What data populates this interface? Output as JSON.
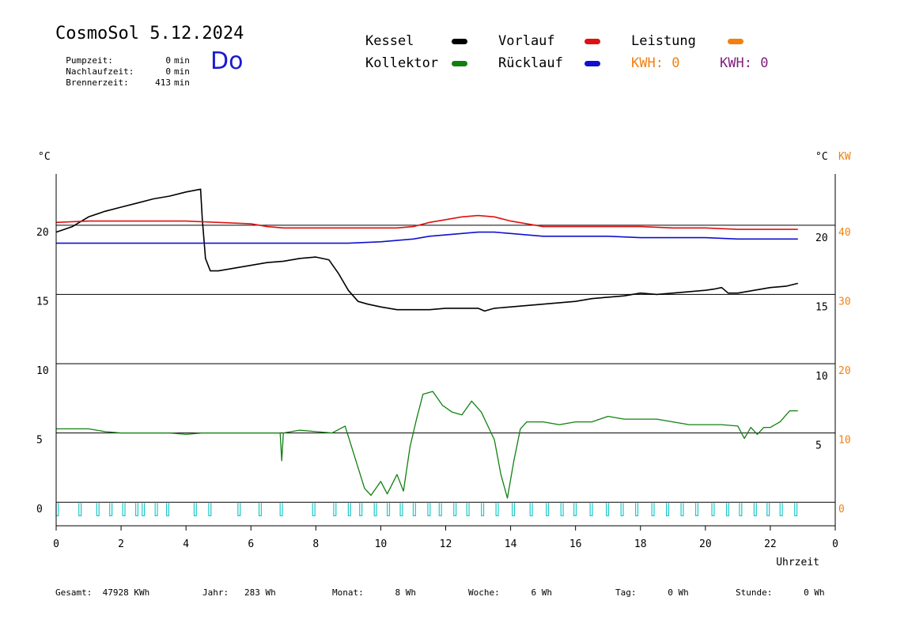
{
  "header": {
    "title": "CosmoSol 5.12.2024",
    "weekday": "Do",
    "stats": [
      {
        "label": "Pumpzeit:",
        "value": "0",
        "unit": "min"
      },
      {
        "label": "Nachlaufzeit:",
        "value": "0",
        "unit": "min"
      },
      {
        "label": "Brennerzeit:",
        "value": "413",
        "unit": "min"
      }
    ]
  },
  "legend": {
    "kessel": {
      "label": "Kessel",
      "color": "#000000"
    },
    "vorlauf": {
      "label": "Vorlauf",
      "color": "#e01010"
    },
    "leistung": {
      "label": "Leistung",
      "color": "#f08010"
    },
    "kollektor": {
      "label": "Kollektor",
      "color": "#108010"
    },
    "ruecklauf": {
      "label": "Rücklauf",
      "color": "#1010d0"
    },
    "kwh_orange": {
      "label": "KWH:",
      "value": "0",
      "color": "#f08010"
    },
    "kwh_purple": {
      "label": "KWH:",
      "value": "0",
      "color": "#802080"
    }
  },
  "footer": [
    {
      "label": "Gesamt:",
      "value": "47928",
      "unit": "KWh"
    },
    {
      "label": "Jahr:",
      "value": "283",
      "unit": "Wh"
    },
    {
      "label": "Monat:",
      "value": "8",
      "unit": "Wh"
    },
    {
      "label": "Woche:",
      "value": "6",
      "unit": "Wh"
    },
    {
      "label": "Tag:",
      "value": "0",
      "unit": "Wh"
    },
    {
      "label": "Stunde:",
      "value": "0",
      "unit": "Wh"
    }
  ],
  "chart_data": {
    "type": "line",
    "xlabel": "Uhrzeit",
    "xlim": [
      0,
      24
    ],
    "xticks": [
      "0",
      "2",
      "4",
      "6",
      "8",
      "10",
      "12",
      "14",
      "16",
      "18",
      "20",
      "22",
      "0"
    ],
    "left_axis": {
      "label": "°C",
      "ylim": [
        -1.7,
        23.7
      ],
      "ticks": [
        0,
        5,
        10,
        15,
        20
      ]
    },
    "right_axis_1": {
      "label": "°C",
      "ticks": [
        "20",
        "15",
        "10",
        "5"
      ]
    },
    "right_axis_2": {
      "label": "KW",
      "ticks": [
        "40",
        "30",
        "20",
        "10",
        "0"
      ],
      "color": "#f08010"
    },
    "ref_lines": [
      0,
      5,
      10,
      15,
      20
    ],
    "series": [
      {
        "name": "Kessel",
        "color": "#000000",
        "points": [
          [
            0,
            19.5
          ],
          [
            0.5,
            19.9
          ],
          [
            1,
            20.6
          ],
          [
            1.5,
            21.0
          ],
          [
            2,
            21.3
          ],
          [
            2.5,
            21.6
          ],
          [
            3,
            21.9
          ],
          [
            3.5,
            22.1
          ],
          [
            4,
            22.4
          ],
          [
            4.45,
            22.6
          ],
          [
            4.5,
            20.5
          ],
          [
            4.6,
            17.6
          ],
          [
            4.75,
            16.7
          ],
          [
            5,
            16.7
          ],
          [
            5.5,
            16.9
          ],
          [
            6,
            17.1
          ],
          [
            6.5,
            17.3
          ],
          [
            7,
            17.4
          ],
          [
            7.5,
            17.6
          ],
          [
            8,
            17.7
          ],
          [
            8.4,
            17.5
          ],
          [
            8.7,
            16.5
          ],
          [
            9,
            15.3
          ],
          [
            9.3,
            14.5
          ],
          [
            9.6,
            14.3
          ],
          [
            10,
            14.1
          ],
          [
            10.5,
            13.9
          ],
          [
            11,
            13.9
          ],
          [
            11.5,
            13.9
          ],
          [
            12,
            14.0
          ],
          [
            12.5,
            14.0
          ],
          [
            13,
            14.0
          ],
          [
            13.2,
            13.8
          ],
          [
            13.5,
            14.0
          ],
          [
            14,
            14.1
          ],
          [
            14.5,
            14.2
          ],
          [
            15,
            14.3
          ],
          [
            15.5,
            14.4
          ],
          [
            16,
            14.5
          ],
          [
            16.5,
            14.7
          ],
          [
            17,
            14.8
          ],
          [
            17.5,
            14.9
          ],
          [
            18,
            15.1
          ],
          [
            18.5,
            15.0
          ],
          [
            19,
            15.1
          ],
          [
            19.5,
            15.2
          ],
          [
            20,
            15.3
          ],
          [
            20.3,
            15.4
          ],
          [
            20.5,
            15.5
          ],
          [
            20.7,
            15.1
          ],
          [
            21,
            15.1
          ],
          [
            21.5,
            15.3
          ],
          [
            22,
            15.5
          ],
          [
            22.5,
            15.6
          ],
          [
            22.85,
            15.8
          ]
        ]
      },
      {
        "name": "Vorlauf",
        "color": "#e01010",
        "points": [
          [
            0,
            20.2
          ],
          [
            1,
            20.3
          ],
          [
            2,
            20.3
          ],
          [
            3,
            20.3
          ],
          [
            4,
            20.3
          ],
          [
            5,
            20.2
          ],
          [
            6,
            20.1
          ],
          [
            6.5,
            19.9
          ],
          [
            7,
            19.8
          ],
          [
            8,
            19.8
          ],
          [
            9,
            19.8
          ],
          [
            10,
            19.8
          ],
          [
            10.5,
            19.8
          ],
          [
            11,
            19.9
          ],
          [
            11.5,
            20.2
          ],
          [
            12,
            20.4
          ],
          [
            12.5,
            20.6
          ],
          [
            13,
            20.7
          ],
          [
            13.5,
            20.6
          ],
          [
            14,
            20.3
          ],
          [
            14.5,
            20.1
          ],
          [
            15,
            19.9
          ],
          [
            16,
            19.9
          ],
          [
            17,
            19.9
          ],
          [
            18,
            19.9
          ],
          [
            19,
            19.8
          ],
          [
            20,
            19.8
          ],
          [
            21,
            19.7
          ],
          [
            22,
            19.7
          ],
          [
            22.85,
            19.7
          ]
        ]
      },
      {
        "name": "Rücklauf",
        "color": "#1010d0",
        "points": [
          [
            0,
            18.7
          ],
          [
            1,
            18.7
          ],
          [
            2,
            18.7
          ],
          [
            3,
            18.7
          ],
          [
            4,
            18.7
          ],
          [
            5,
            18.7
          ],
          [
            6,
            18.7
          ],
          [
            7,
            18.7
          ],
          [
            8,
            18.7
          ],
          [
            9,
            18.7
          ],
          [
            10,
            18.8
          ],
          [
            10.5,
            18.9
          ],
          [
            11,
            19.0
          ],
          [
            11.5,
            19.2
          ],
          [
            12,
            19.3
          ],
          [
            12.5,
            19.4
          ],
          [
            13,
            19.5
          ],
          [
            13.5,
            19.5
          ],
          [
            14,
            19.4
          ],
          [
            14.5,
            19.3
          ],
          [
            15,
            19.2
          ],
          [
            16,
            19.2
          ],
          [
            17,
            19.2
          ],
          [
            18,
            19.1
          ],
          [
            19,
            19.1
          ],
          [
            20,
            19.1
          ],
          [
            21,
            19.0
          ],
          [
            22,
            19.0
          ],
          [
            22.85,
            19.0
          ]
        ]
      },
      {
        "name": "Kollektor",
        "color": "#108010",
        "points": [
          [
            0,
            5.3
          ],
          [
            0.5,
            5.3
          ],
          [
            1,
            5.3
          ],
          [
            1.5,
            5.1
          ],
          [
            2,
            5.0
          ],
          [
            2.5,
            5.0
          ],
          [
            3,
            5.0
          ],
          [
            3.5,
            5.0
          ],
          [
            4,
            4.9
          ],
          [
            4.5,
            5.0
          ],
          [
            5,
            5.0
          ],
          [
            5.5,
            5.0
          ],
          [
            6,
            5.0
          ],
          [
            6.5,
            5.0
          ],
          [
            6.9,
            5.0
          ],
          [
            6.95,
            3.0
          ],
          [
            7,
            5.0
          ],
          [
            7.5,
            5.2
          ],
          [
            8,
            5.1
          ],
          [
            8.5,
            5.0
          ],
          [
            8.9,
            5.5
          ],
          [
            9.1,
            4.0
          ],
          [
            9.3,
            2.5
          ],
          [
            9.5,
            1.0
          ],
          [
            9.7,
            0.5
          ],
          [
            10,
            1.5
          ],
          [
            10.2,
            0.6
          ],
          [
            10.5,
            2.0
          ],
          [
            10.7,
            0.8
          ],
          [
            10.9,
            4.0
          ],
          [
            11.1,
            6.0
          ],
          [
            11.3,
            7.8
          ],
          [
            11.6,
            8.0
          ],
          [
            11.9,
            7.0
          ],
          [
            12.2,
            6.5
          ],
          [
            12.5,
            6.3
          ],
          [
            12.8,
            7.3
          ],
          [
            13.1,
            6.5
          ],
          [
            13.3,
            5.5
          ],
          [
            13.5,
            4.5
          ],
          [
            13.7,
            2.0
          ],
          [
            13.9,
            0.3
          ],
          [
            14.1,
            3.0
          ],
          [
            14.3,
            5.3
          ],
          [
            14.5,
            5.8
          ],
          [
            15,
            5.8
          ],
          [
            15.5,
            5.6
          ],
          [
            16,
            5.8
          ],
          [
            16.5,
            5.8
          ],
          [
            17,
            6.2
          ],
          [
            17.5,
            6.0
          ],
          [
            18,
            6.0
          ],
          [
            18.5,
            6.0
          ],
          [
            19,
            5.8
          ],
          [
            19.5,
            5.6
          ],
          [
            20,
            5.6
          ],
          [
            20.5,
            5.6
          ],
          [
            21,
            5.5
          ],
          [
            21.2,
            4.6
          ],
          [
            21.4,
            5.4
          ],
          [
            21.6,
            4.9
          ],
          [
            21.8,
            5.4
          ],
          [
            22,
            5.4
          ],
          [
            22.3,
            5.8
          ],
          [
            22.6,
            6.6
          ],
          [
            22.85,
            6.6
          ]
        ]
      }
    ],
    "pump_pulses": {
      "color": "#20c8c8",
      "starts": [
        0,
        0.7,
        1.25,
        1.65,
        2.05,
        2.45,
        2.65,
        3.05,
        3.4,
        4.25,
        4.7,
        5.6,
        6.25,
        6.9,
        7.9,
        8.55,
        9.0,
        9.35,
        9.8,
        10.2,
        10.6,
        11.0,
        11.45,
        11.8,
        12.25,
        12.65,
        13.1,
        13.55,
        14.05,
        14.6,
        15.1,
        15.55,
        15.95,
        16.45,
        16.95,
        17.4,
        17.85,
        18.35,
        18.8,
        19.25,
        19.7,
        20.2,
        20.65,
        21.05,
        21.5,
        21.9,
        22.3,
        22.75
      ]
    }
  }
}
